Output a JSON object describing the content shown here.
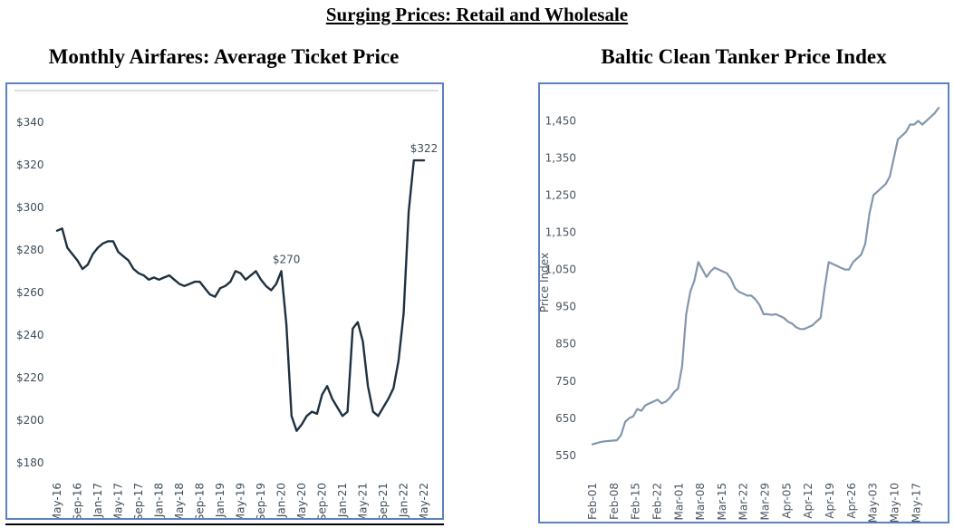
{
  "page": {
    "title": "Surging Prices: Retail and Wholesale"
  },
  "chart_data": [
    {
      "type": "line",
      "title": "Monthly Airfares: Average Ticket Price",
      "xlabel": "",
      "ylabel": "",
      "y_ticks": [
        "$180",
        "$200",
        "$220",
        "$240",
        "$260",
        "$280",
        "$300",
        "$320",
        "$340"
      ],
      "y_tick_values": [
        180,
        200,
        220,
        240,
        260,
        280,
        300,
        320,
        340
      ],
      "ylim": [
        180,
        345
      ],
      "x_ticks": [
        "May-16",
        "Sep-16",
        "Jan-17",
        "May-17",
        "Sep-17",
        "Jan-18",
        "May-18",
        "Sep-18",
        "Jan-19",
        "May-19",
        "Sep-19",
        "Jan-20",
        "May-20",
        "Sep-20",
        "Jan-21",
        "May-21",
        "Sep-21",
        "Jan-22",
        "May-22"
      ],
      "annotations": [
        {
          "label": "$270",
          "x": 45,
          "y": 270
        },
        {
          "label": "$322",
          "x": 72,
          "y": 322
        }
      ],
      "line_color": "#1f3140",
      "grid": false,
      "series": [
        {
          "x": [
            0,
            1,
            2,
            3,
            4,
            5,
            6,
            7,
            8,
            9,
            10,
            11,
            12,
            13,
            14,
            15,
            16,
            17,
            18,
            19,
            20,
            21,
            22,
            23,
            24,
            25,
            26,
            27,
            28,
            29,
            30,
            31,
            32,
            33,
            34,
            35,
            36,
            37,
            38,
            39,
            40,
            41,
            42,
            43,
            44,
            45,
            46,
            47,
            48,
            49,
            50,
            51,
            52,
            53,
            54,
            55,
            56,
            57,
            58,
            59,
            60,
            61,
            62,
            63,
            64,
            65,
            66,
            67,
            68,
            69,
            70,
            71,
            72
          ],
          "values": [
            289,
            290,
            281,
            278,
            275,
            271,
            273,
            278,
            281,
            283,
            284,
            284,
            279,
            277,
            275,
            271,
            269,
            268,
            266,
            267,
            266,
            267,
            268,
            266,
            264,
            263,
            264,
            265,
            265,
            262,
            259,
            258,
            262,
            263,
            265,
            270,
            269,
            266,
            268,
            270,
            266,
            263,
            261,
            264,
            270,
            245,
            202,
            195,
            198,
            202,
            204,
            203,
            212,
            216,
            210,
            206,
            202,
            204,
            243,
            246,
            237,
            216,
            204,
            202,
            206,
            210,
            215,
            228,
            250,
            298,
            322,
            322,
            322
          ]
        }
      ]
    },
    {
      "type": "line",
      "title": "Baltic Clean Tanker Price Index",
      "xlabel": "",
      "ylabel": "Price Index",
      "y_ticks": [
        "550",
        "650",
        "750",
        "850",
        "950",
        "1,050",
        "1,150",
        "1,250",
        "1,350",
        "1,450"
      ],
      "y_tick_values": [
        550,
        650,
        750,
        850,
        950,
        1050,
        1150,
        1250,
        1350,
        1450
      ],
      "ylim": [
        540,
        1490
      ],
      "x_ticks": [
        "Feb-01",
        "Feb-08",
        "Feb-15",
        "Feb-22",
        "Mar-01",
        "Mar-08",
        "Mar-15",
        "Mar-22",
        "Mar-29",
        "Apr-05",
        "Apr-12",
        "Apr-19",
        "Apr-26",
        "May-03",
        "May-10",
        "May-17"
      ],
      "line_color": "#8496ad",
      "grid": false,
      "series": [
        {
          "x": [
            0,
            1,
            2,
            3,
            4,
            5,
            6,
            7,
            8,
            9,
            10,
            11,
            12,
            13,
            14,
            15,
            16,
            17,
            18,
            19,
            20,
            21,
            22,
            23,
            24,
            25,
            26,
            27,
            28,
            29,
            30,
            31,
            32,
            33,
            34,
            35,
            36,
            37,
            38,
            39,
            40,
            41,
            42,
            43,
            44,
            45,
            46,
            47,
            48,
            49,
            50,
            51,
            52,
            53,
            54,
            55,
            56,
            57,
            58,
            59,
            60,
            61,
            62,
            63,
            64,
            65,
            66,
            67,
            68,
            69,
            70,
            71,
            72,
            73,
            74,
            75,
            76,
            77,
            78,
            79,
            80,
            81,
            82,
            83,
            84,
            85
          ],
          "values": [
            580,
            583,
            586,
            588,
            589,
            590,
            591,
            605,
            640,
            650,
            655,
            675,
            670,
            685,
            690,
            695,
            700,
            690,
            695,
            705,
            720,
            730,
            790,
            930,
            990,
            1020,
            1070,
            1050,
            1030,
            1045,
            1055,
            1050,
            1045,
            1040,
            1025,
            1000,
            990,
            985,
            980,
            980,
            970,
            955,
            930,
            930,
            928,
            930,
            925,
            920,
            910,
            905,
            895,
            890,
            890,
            895,
            900,
            910,
            920,
            1000,
            1070,
            1065,
            1060,
            1055,
            1050,
            1050,
            1070,
            1080,
            1090,
            1120,
            1200,
            1250,
            1260,
            1270,
            1280,
            1300,
            1350,
            1400,
            1410,
            1420,
            1440,
            1440,
            1450,
            1440,
            1450,
            1460,
            1470,
            1485
          ]
        }
      ]
    }
  ]
}
